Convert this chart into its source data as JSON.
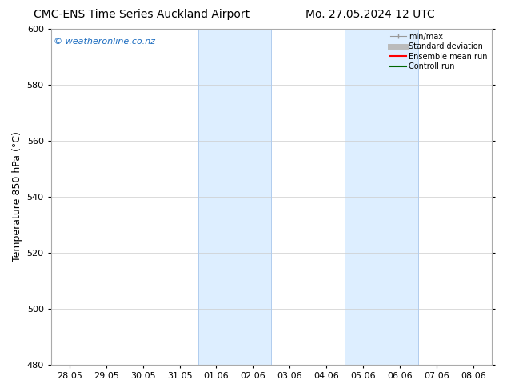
{
  "title_left": "CMC-ENS Time Series Auckland Airport",
  "title_right": "Mo. 27.05.2024 12 UTC",
  "ylabel": "Temperature 850 hPa (°C)",
  "xlabel": "",
  "ylim": [
    480,
    600
  ],
  "yticks": [
    480,
    500,
    520,
    540,
    560,
    580,
    600
  ],
  "xtick_labels": [
    "28.05",
    "29.05",
    "30.05",
    "31.05",
    "01.06",
    "02.06",
    "03.06",
    "04.06",
    "05.06",
    "06.06",
    "07.06",
    "08.06"
  ],
  "shaded_regions": [
    {
      "start": 4,
      "end": 6
    },
    {
      "start": 8,
      "end": 10
    }
  ],
  "shaded_color": "#ddeeff",
  "shaded_edge_color": "#b0ccee",
  "background_color": "#ffffff",
  "watermark_text": "© weatheronline.co.nz",
  "watermark_color": "#1a6bbf",
  "legend_entries": [
    {
      "label": "min/max",
      "color": "#999999",
      "lw": 1
    },
    {
      "label": "Standard deviation",
      "color": "#bbbbbb",
      "lw": 5
    },
    {
      "label": "Ensemble mean run",
      "color": "#ff0000",
      "lw": 1.5
    },
    {
      "label": "Controll run",
      "color": "#006600",
      "lw": 1.5
    }
  ],
  "grid_color": "#cccccc",
  "tick_label_fontsize": 8,
  "axis_label_fontsize": 9,
  "title_fontsize": 10,
  "watermark_fontsize": 8
}
